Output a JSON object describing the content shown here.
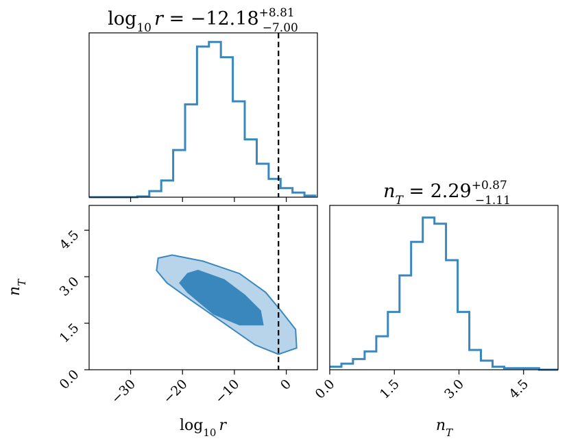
{
  "chart_data": [
    {
      "type": "histogram",
      "panel": "top-left",
      "title": {
        "lhs": "log",
        "lhs_sub": "10",
        "var": "r",
        "eq": " = ",
        "value": "−12.18",
        "plus": "+8.81",
        "minus": "−7.00"
      },
      "xlim": [
        -38,
        6
      ],
      "ylim": [
        0,
        1.08
      ],
      "bin_edges": [
        -38,
        -35.6,
        -33.3,
        -31,
        -28.7,
        -26.4,
        -24.1,
        -21.8,
        -19.5,
        -17.2,
        -14.9,
        -12.6,
        -10.3,
        -8.0,
        -5.7,
        -3.4,
        -1.1,
        1.2,
        3.5,
        5.8
      ],
      "bin_heights": [
        0.0,
        0.0,
        0.0,
        0.0,
        0.005,
        0.04,
        0.11,
        0.31,
        0.61,
        0.99,
        1.02,
        0.92,
        0.63,
        0.38,
        0.22,
        0.12,
        0.06,
        0.03,
        0.01
      ],
      "truth_line": -1.5,
      "color": "#3a87be"
    },
    {
      "type": "contour",
      "panel": "bottom-left",
      "xlim": [
        -38,
        6
      ],
      "ylim": [
        0,
        5.3
      ],
      "x_ticks": [
        -30,
        -20,
        -10,
        0
      ],
      "x_tick_labels": [
        "−30",
        "−20",
        "−10",
        "0"
      ],
      "y_ticks": [
        0,
        1.5,
        3,
        4.5
      ],
      "y_tick_labels": [
        "0.0",
        "1.5",
        "3.0",
        "4.5"
      ],
      "xlabel": {
        "text": "log",
        "sub": "10",
        "var": "r"
      },
      "ylabel": {
        "var": "n",
        "sub": "T"
      },
      "outer_contour": [
        [
          -24.7,
          3.6
        ],
        [
          -22,
          3.7
        ],
        [
          -16,
          3.5
        ],
        [
          -9,
          3.1
        ],
        [
          -4,
          2.5
        ],
        [
          -1,
          1.9
        ],
        [
          1.8,
          1.3
        ],
        [
          2,
          0.7
        ],
        [
          -1.5,
          0.5
        ],
        [
          -6,
          0.8
        ],
        [
          -12,
          1.5
        ],
        [
          -18,
          2.2
        ],
        [
          -23,
          2.8
        ],
        [
          -25,
          3.2
        ]
      ],
      "inner_contour": [
        [
          -19,
          3.1
        ],
        [
          -17,
          3.2
        ],
        [
          -12,
          2.9
        ],
        [
          -8,
          2.4
        ],
        [
          -5,
          1.9
        ],
        [
          -4.5,
          1.45
        ],
        [
          -9,
          1.45
        ],
        [
          -14,
          1.8
        ],
        [
          -19,
          2.5
        ],
        [
          -20.5,
          2.8
        ]
      ],
      "truth_line": -1.5,
      "colors": {
        "outer": "#b8d4ea",
        "inner": "#3a87be",
        "edge": "#3a87be"
      }
    },
    {
      "type": "histogram",
      "panel": "bottom-right",
      "title": {
        "var": "n",
        "sub": "T",
        "eq": " = ",
        "value": "2.29",
        "plus": "+0.87",
        "minus": "−1.11"
      },
      "xlim": [
        0,
        5.3
      ],
      "ylim": [
        0,
        1.08
      ],
      "bin_edges": [
        0,
        0.27,
        0.54,
        0.81,
        1.08,
        1.35,
        1.62,
        1.89,
        2.16,
        2.43,
        2.7,
        2.97,
        3.24,
        3.51,
        3.78,
        4.05,
        4.32,
        4.59,
        4.86,
        5.13,
        5.3
      ],
      "bin_heights": [
        0.02,
        0.04,
        0.07,
        0.12,
        0.22,
        0.38,
        0.62,
        0.84,
        1.0,
        0.96,
        0.72,
        0.38,
        0.13,
        0.06,
        0.02,
        0.01,
        0.01,
        0.01,
        0.0,
        0.0
      ],
      "x_ticks": [
        0,
        1.5,
        3,
        4.5
      ],
      "x_tick_labels": [
        "0.0",
        "1.5",
        "3.0",
        "4.5"
      ],
      "xlabel": {
        "var": "n",
        "sub": "T"
      },
      "color": "#3a87be"
    }
  ]
}
